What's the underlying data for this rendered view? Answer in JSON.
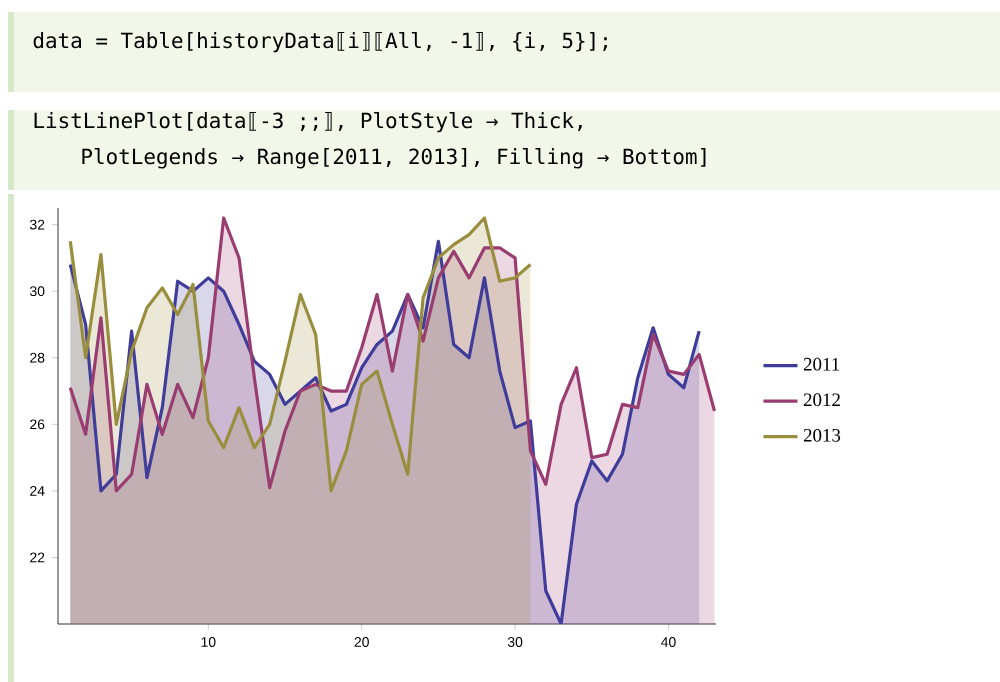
{
  "chart_data": {
    "type": "area",
    "annotations": [
      "data = Table[historyData⟦i⟧⟦All, -1⟧, {i, 5}];",
      "ListLinePlot[data⟦-3 ;;⟧, PlotStyle → Thick,",
      "PlotLegends → Range[2011, 2013], Filling → Bottom]"
    ],
    "series": [
      {
        "name": "2011",
        "color": "#3f3d99",
        "x": [
          1,
          2,
          3,
          4,
          5,
          6,
          7,
          8,
          9,
          10,
          11,
          12,
          13,
          14,
          15,
          16,
          17,
          18,
          19,
          20,
          21,
          22,
          23,
          24,
          25,
          26,
          27,
          28,
          29,
          30,
          31,
          32,
          33,
          34,
          35,
          36,
          37,
          38,
          39,
          40,
          41,
          42
        ],
        "values": [
          30.8,
          29.0,
          24.0,
          24.5,
          28.8,
          24.4,
          26.5,
          30.3,
          30.0,
          30.4,
          30.0,
          29.0,
          27.9,
          27.5,
          26.6,
          27.0,
          27.4,
          26.4,
          26.6,
          27.7,
          28.4,
          28.8,
          29.9,
          28.9,
          31.5,
          28.4,
          28.0,
          30.4,
          27.6,
          25.9,
          26.1,
          21.0,
          20.0,
          23.6,
          24.9,
          24.3,
          25.1,
          27.4,
          28.9,
          27.5,
          27.1,
          28.8
        ]
      },
      {
        "name": "2012",
        "color": "#993d71",
        "x": [
          1,
          2,
          3,
          4,
          5,
          6,
          7,
          8,
          9,
          10,
          11,
          12,
          13,
          14,
          15,
          16,
          17,
          18,
          19,
          20,
          21,
          22,
          23,
          24,
          25,
          26,
          27,
          28,
          29,
          30,
          31,
          32,
          33,
          34,
          35,
          36,
          37,
          38,
          39,
          40,
          41,
          42,
          43
        ],
        "values": [
          27.1,
          25.7,
          29.2,
          24.0,
          24.5,
          27.2,
          25.7,
          27.2,
          26.2,
          28.0,
          32.2,
          31.0,
          27.4,
          24.1,
          25.8,
          27.0,
          27.2,
          27.0,
          27.0,
          28.3,
          29.9,
          27.6,
          29.9,
          28.5,
          30.4,
          31.2,
          30.4,
          31.3,
          31.3,
          31.0,
          25.2,
          24.2,
          26.6,
          27.7,
          25.0,
          25.1,
          26.6,
          26.5,
          28.7,
          27.6,
          27.5,
          28.1,
          26.4
        ]
      },
      {
        "name": "2013",
        "color": "#998e3d",
        "x": [
          1,
          2,
          3,
          4,
          5,
          6,
          7,
          8,
          9,
          10,
          11,
          12,
          13,
          14,
          15,
          16,
          17,
          18,
          19,
          20,
          21,
          22,
          23,
          24,
          25,
          26,
          27,
          28,
          29,
          30,
          31
        ],
        "values": [
          31.5,
          28.0,
          31.1,
          26.0,
          28.2,
          29.5,
          30.1,
          29.3,
          30.2,
          26.1,
          25.3,
          26.5,
          25.3,
          26.0,
          27.9,
          29.9,
          28.7,
          24.0,
          25.2,
          27.2,
          27.6,
          26.0,
          24.5,
          29.8,
          31.0,
          31.4,
          31.7,
          32.2,
          30.3,
          30.4,
          30.8
        ]
      }
    ],
    "xlim": [
      0.2,
      43.1
    ],
    "ylim": [
      20,
      32.5
    ],
    "xticks": [
      10,
      20,
      30,
      40
    ],
    "yticks": [
      22,
      24,
      26,
      28,
      30,
      32
    ],
    "grid": false,
    "legend": "right",
    "line_style": "solid",
    "marker": "none"
  }
}
